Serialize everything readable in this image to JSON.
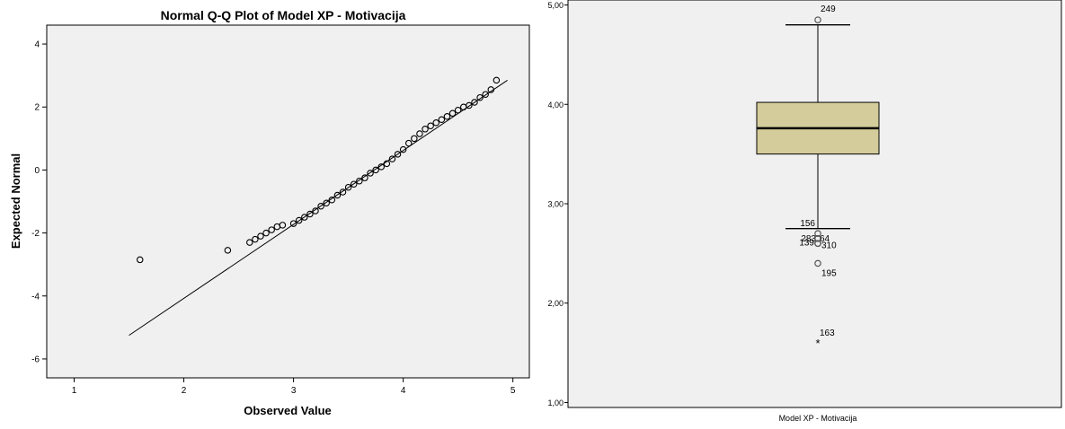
{
  "chart_data": [
    {
      "type": "scatter",
      "title": "Normal Q-Q Plot of Model XP - Motivacija",
      "xlabel": "Observed Value",
      "ylabel": "Expected Normal",
      "xlim": [
        0.75,
        5.15
      ],
      "ylim": [
        -6.6,
        4.6
      ],
      "xticks": [
        "1",
        "2",
        "3",
        "4",
        "5"
      ],
      "yticks": [
        "-6",
        "-4",
        "-2",
        "0",
        "2",
        "4"
      ],
      "grid": false,
      "reference_line": {
        "x": [
          1.5,
          4.95
        ],
        "y": [
          -5.25,
          2.85
        ]
      },
      "points": {
        "x": [
          1.6,
          2.4,
          2.6,
          2.65,
          2.7,
          2.75,
          2.8,
          2.85,
          2.9,
          3.0,
          3.05,
          3.1,
          3.15,
          3.2,
          3.25,
          3.3,
          3.35,
          3.4,
          3.45,
          3.5,
          3.55,
          3.6,
          3.65,
          3.7,
          3.75,
          3.8,
          3.85,
          3.9,
          3.95,
          4.0,
          4.05,
          4.1,
          4.15,
          4.2,
          4.25,
          4.3,
          4.35,
          4.4,
          4.45,
          4.5,
          4.55,
          4.6,
          4.65,
          4.7,
          4.75,
          4.8,
          4.85
        ],
        "y": [
          -2.85,
          -2.55,
          -2.3,
          -2.2,
          -2.1,
          -2.0,
          -1.9,
          -1.8,
          -1.75,
          -1.7,
          -1.6,
          -1.5,
          -1.4,
          -1.3,
          -1.15,
          -1.05,
          -0.95,
          -0.8,
          -0.7,
          -0.55,
          -0.45,
          -0.35,
          -0.25,
          -0.1,
          0.0,
          0.1,
          0.2,
          0.35,
          0.5,
          0.65,
          0.85,
          1.0,
          1.15,
          1.3,
          1.4,
          1.5,
          1.6,
          1.7,
          1.8,
          1.9,
          2.0,
          2.05,
          2.15,
          2.3,
          2.4,
          2.55,
          2.85
        ]
      }
    },
    {
      "type": "box",
      "category": "Model XP - Motivacija",
      "ylim": [
        0.95,
        5.05
      ],
      "yticks": [
        "1,00",
        "2,00",
        "3,00",
        "4,00",
        "5,00"
      ],
      "grid": false,
      "box_color": "#d4cc9a",
      "q1": 3.5,
      "median": 3.76,
      "q3": 4.02,
      "whisker_low": 2.75,
      "whisker_high": 4.8,
      "outliers": [
        {
          "label": "249",
          "value": 4.85
        },
        {
          "label": "156",
          "value": 2.7
        },
        {
          "label": "283",
          "value": 2.65
        },
        {
          "label": "64",
          "value": 2.65
        },
        {
          "label": "139",
          "value": 2.6
        },
        {
          "label": "310",
          "value": 2.6
        },
        {
          "label": "195",
          "value": 2.4
        }
      ],
      "extremes": [
        {
          "label": "163",
          "value": 1.6
        }
      ]
    }
  ]
}
